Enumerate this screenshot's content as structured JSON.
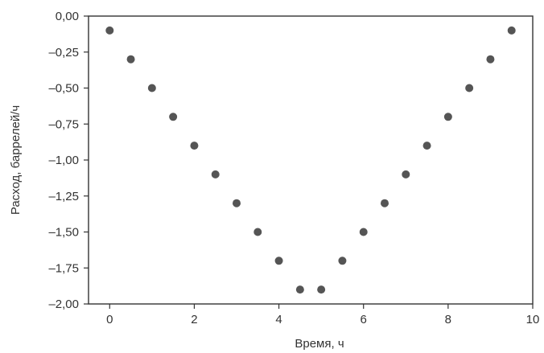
{
  "chart_data": {
    "type": "scatter",
    "xlabel": "Время, ч",
    "ylabel": "Расход, баррелей/ч",
    "xlim": [
      -0.5,
      10
    ],
    "ylim": [
      -2.0,
      0.0
    ],
    "x_ticks": [
      0,
      2,
      4,
      6,
      8,
      10
    ],
    "y_ticks": [
      0.0,
      -0.25,
      -0.5,
      -0.75,
      -1.0,
      -1.25,
      -1.5,
      -1.75,
      -2.0
    ],
    "x_tick_labels": [
      "0",
      "2",
      "4",
      "6",
      "8",
      "10"
    ],
    "y_tick_labels": [
      "0,00",
      "–0,25",
      "–0,50",
      "–0,75",
      "–1,00",
      "–1,25",
      "–1,50",
      "–1,75",
      "–2,00"
    ],
    "grid": false,
    "marker_color": "#555555",
    "series": [
      {
        "x": [
          0,
          0.5,
          1,
          1.5,
          2,
          2.5,
          3,
          3.5,
          4,
          4.5,
          5,
          5.5,
          6,
          6.5,
          7,
          7.5,
          8,
          8.5,
          9,
          9.5
        ],
        "y": [
          -0.1,
          -0.3,
          -0.5,
          -0.7,
          -0.9,
          -1.1,
          -1.3,
          -1.5,
          -1.7,
          -1.9,
          -1.9,
          -1.7,
          -1.5,
          -1.3,
          -1.1,
          -0.9,
          -0.7,
          -0.5,
          -0.3,
          -0.1
        ]
      }
    ]
  }
}
